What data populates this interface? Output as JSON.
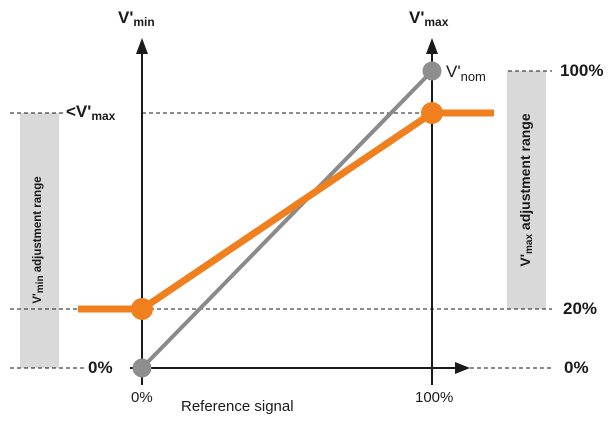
{
  "labels": {
    "axis_left_main": "V'",
    "axis_left_sub": "min",
    "axis_right_main": "V'",
    "axis_right_sub": "max",
    "lt_vmax_prefix": "<V'",
    "lt_vmax_sub": "max",
    "vnom_main": "V'",
    "vnom_sub": "nom",
    "pct_100_right": "100%",
    "pct_20_right": "20%",
    "pct_0_right": "0%",
    "pct_0_left": "0%",
    "x_tick_0": "0%",
    "x_tick_100": "100%",
    "x_axis_label": "Reference signal",
    "vmin_range_main": "V'",
    "vmin_range_sub": "min",
    "vmin_range_rest": " adjustment range",
    "vmax_range_main": "V'",
    "vmax_range_sub": "max",
    "vmax_range_rest": " adjustment range"
  },
  "colors": {
    "orange": "#f07f1e",
    "gray_line": "#8a8a8a",
    "gray_dot": "#8e8e8e",
    "band": "#d9d9d9",
    "axis": "#1a1a1a"
  },
  "chart_data": {
    "type": "line",
    "x_axis": "Reference signal",
    "x_ticks": [
      "0%",
      "100%"
    ],
    "series": [
      {
        "name": "V'nom",
        "points": [
          [
            0,
            0
          ],
          [
            100,
            100
          ]
        ]
      },
      {
        "name": "",
        "points": [
          [
            -25,
            20
          ],
          [
            0,
            20
          ],
          [
            100,
            87
          ],
          [
            115,
            87
          ]
        ]
      }
    ]
  }
}
